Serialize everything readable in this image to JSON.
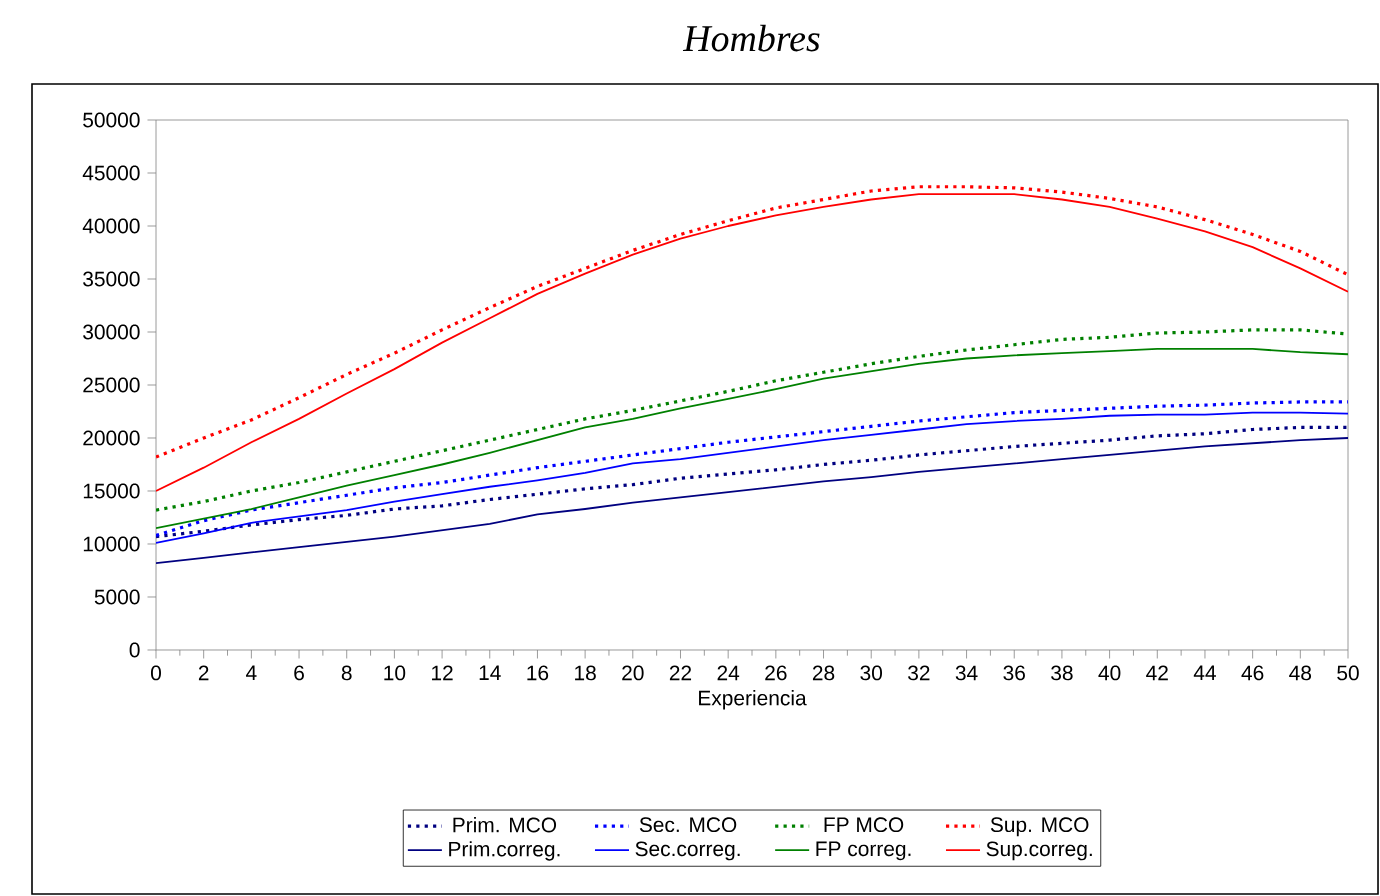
{
  "chart_data": {
    "type": "line",
    "title": "Hombres",
    "xlabel": "Experiencia",
    "x": [
      0,
      2,
      4,
      6,
      8,
      10,
      12,
      14,
      16,
      18,
      20,
      22,
      24,
      26,
      28,
      30,
      32,
      34,
      36,
      38,
      40,
      42,
      44,
      46,
      48,
      50
    ],
    "xlim": [
      0,
      50
    ],
    "xticks": [
      0,
      2,
      4,
      6,
      8,
      10,
      12,
      14,
      16,
      18,
      20,
      22,
      24,
      26,
      28,
      30,
      32,
      34,
      36,
      38,
      40,
      42,
      44,
      46,
      48,
      50
    ],
    "ylim": [
      0,
      50000
    ],
    "yticks": [
      0,
      5000,
      10000,
      15000,
      20000,
      25000,
      30000,
      35000,
      40000,
      45000,
      50000
    ],
    "grid": false,
    "legend": "bottom",
    "series": [
      {
        "name": "Prim. MCO",
        "color": "#000080",
        "line_style": "dotted",
        "values": [
          10700,
          11200,
          11800,
          12300,
          12700,
          13300,
          13600,
          14200,
          14700,
          15200,
          15600,
          16200,
          16600,
          17000,
          17500,
          17900,
          18400,
          18800,
          19200,
          19500,
          19800,
          20200,
          20400,
          20800,
          21000,
          21000
        ]
      },
      {
        "name": "Sec. MCO",
        "color": "#0000ff",
        "line_style": "dotted",
        "values": [
          10800,
          12200,
          13200,
          13900,
          14600,
          15300,
          15800,
          16500,
          17200,
          17800,
          18400,
          19000,
          19600,
          20100,
          20600,
          21100,
          21600,
          22000,
          22400,
          22600,
          22800,
          23000,
          23100,
          23300,
          23400,
          23400
        ]
      },
      {
        "name": "FP MCO",
        "color": "#008000",
        "line_style": "dotted",
        "values": [
          13200,
          14000,
          15000,
          15800,
          16800,
          17800,
          18800,
          19800,
          20800,
          21800,
          22600,
          23500,
          24400,
          25400,
          26200,
          27000,
          27700,
          28300,
          28800,
          29300,
          29500,
          29900,
          30000,
          30200,
          30200,
          29800
        ]
      },
      {
        "name": "Sup. MCO",
        "color": "#ff0000",
        "line_style": "dotted",
        "values": [
          18200,
          20000,
          21700,
          23800,
          26000,
          28000,
          30200,
          32300,
          34300,
          36000,
          37700,
          39200,
          40500,
          41700,
          42500,
          43300,
          43700,
          43700,
          43600,
          43200,
          42600,
          41800,
          40600,
          39200,
          37600,
          35400
        ]
      },
      {
        "name": "Prim.correg.",
        "color": "#000080",
        "line_style": "solid",
        "values": [
          8200,
          8700,
          9200,
          9700,
          10200,
          10700,
          11300,
          11900,
          12800,
          13300,
          13900,
          14400,
          14900,
          15400,
          15900,
          16300,
          16800,
          17200,
          17600,
          18000,
          18400,
          18800,
          19200,
          19500,
          19800,
          20000
        ]
      },
      {
        "name": "Sec.correg.",
        "color": "#0000ff",
        "line_style": "solid",
        "values": [
          10100,
          11000,
          12000,
          12600,
          13200,
          14000,
          14700,
          15400,
          16000,
          16700,
          17600,
          18000,
          18600,
          19200,
          19800,
          20300,
          20800,
          21300,
          21600,
          21800,
          22100,
          22200,
          22200,
          22400,
          22400,
          22300
        ]
      },
      {
        "name": "FP correg.",
        "color": "#008000",
        "line_style": "solid",
        "values": [
          11500,
          12400,
          13300,
          14400,
          15500,
          16500,
          17500,
          18600,
          19800,
          21000,
          21800,
          22800,
          23700,
          24600,
          25600,
          26300,
          27000,
          27500,
          27800,
          28000,
          28200,
          28400,
          28400,
          28400,
          28100,
          27900
        ]
      },
      {
        "name": "Sup.correg.",
        "color": "#ff0000",
        "line_style": "solid",
        "values": [
          15000,
          17200,
          19600,
          21800,
          24200,
          26500,
          29000,
          31300,
          33600,
          35500,
          37300,
          38800,
          40000,
          41000,
          41800,
          42500,
          43000,
          43000,
          43000,
          42500,
          41800,
          40700,
          39500,
          38000,
          36000,
          33800
        ]
      }
    ]
  }
}
